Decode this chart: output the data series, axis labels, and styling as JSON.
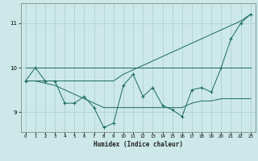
{
  "x": [
    0,
    1,
    2,
    3,
    4,
    5,
    6,
    7,
    8,
    9,
    10,
    11,
    12,
    13,
    14,
    15,
    16,
    17,
    18,
    19,
    20,
    21,
    22,
    23
  ],
  "y_main": [
    9.7,
    10.0,
    9.7,
    9.7,
    9.2,
    9.2,
    9.35,
    9.1,
    8.65,
    8.75,
    9.6,
    9.85,
    9.35,
    9.55,
    9.15,
    9.05,
    8.9,
    9.5,
    9.55,
    9.45,
    10.0,
    10.65,
    11.0,
    11.2
  ],
  "y_upper": [
    9.7,
    9.7,
    9.7,
    9.7,
    9.7,
    9.7,
    9.7,
    9.7,
    9.7,
    9.7,
    9.85,
    9.95,
    10.05,
    10.15,
    10.25,
    10.35,
    10.45,
    10.55,
    10.65,
    10.75,
    10.85,
    10.95,
    11.05,
    11.2
  ],
  "y_lower": [
    9.7,
    9.7,
    9.65,
    9.6,
    9.5,
    9.4,
    9.3,
    9.2,
    9.1,
    9.1,
    9.1,
    9.1,
    9.1,
    9.1,
    9.1,
    9.1,
    9.1,
    9.2,
    9.25,
    9.25,
    9.3,
    9.3,
    9.3,
    9.3
  ],
  "y_flat": [
    10.0,
    10.0,
    10.0,
    10.0,
    10.0,
    10.0,
    10.0,
    10.0,
    10.0,
    10.0,
    10.0,
    10.0,
    10.0,
    10.0,
    10.0,
    10.0,
    10.0,
    10.0,
    10.0,
    10.0,
    10.0,
    10.0,
    10.0,
    10.0
  ],
  "line_color": "#1a6b5e",
  "bg_color": "#cce8e8",
  "grid_color": "#aacccc",
  "xlabel": "Humidex (Indice chaleur)",
  "yticks": [
    9,
    10,
    11
  ],
  "xticks": [
    0,
    1,
    2,
    3,
    4,
    5,
    6,
    7,
    8,
    9,
    10,
    11,
    12,
    13,
    14,
    15,
    16,
    17,
    18,
    19,
    20,
    21,
    22,
    23
  ],
  "ylim": [
    8.55,
    11.45
  ],
  "xlim": [
    -0.5,
    23.5
  ]
}
